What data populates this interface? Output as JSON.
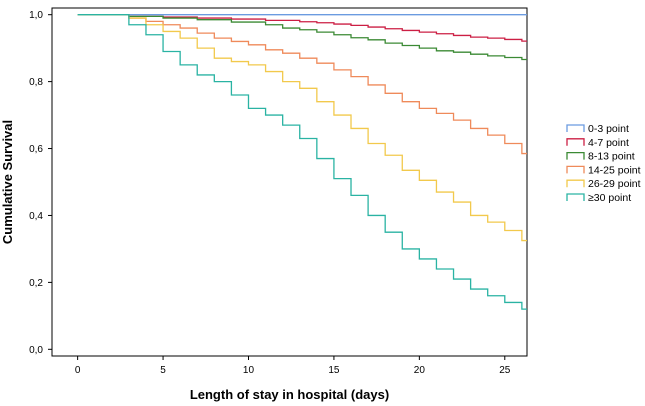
{
  "chart_data": {
    "type": "line",
    "step": true,
    "xlabel": "Length of stay in hospital (days)",
    "ylabel": "Cumulative Survival",
    "xlim": [
      -1.5,
      26.3
    ],
    "ylim": [
      -0.02,
      1.02
    ],
    "x_ticks": [
      0,
      5,
      10,
      15,
      20,
      25
    ],
    "x_tick_labels": [
      "0",
      "5",
      "10",
      "15",
      "20",
      "25"
    ],
    "y_ticks": [
      0,
      0.2,
      0.4,
      0.6,
      0.8,
      1.0
    ],
    "y_tick_labels": [
      "0,0",
      "0,2",
      "0,4",
      "0,6",
      "0,8",
      "1,0"
    ],
    "grid": false,
    "legend_position": "right",
    "series": [
      {
        "name": "0-3 point",
        "color": "#6b9be0",
        "x": [
          0,
          26.3
        ],
        "y": [
          1.0,
          1.0
        ]
      },
      {
        "name": "4-7 point",
        "color": "#cc1f44",
        "x": [
          0,
          3,
          5,
          7,
          9,
          11,
          13,
          14,
          15,
          16,
          17,
          18,
          19,
          20,
          21,
          22,
          23,
          24,
          25,
          26,
          26.3
        ],
        "y": [
          1.0,
          0.995,
          0.993,
          0.99,
          0.987,
          0.983,
          0.979,
          0.976,
          0.972,
          0.968,
          0.963,
          0.958,
          0.953,
          0.948,
          0.943,
          0.938,
          0.933,
          0.93,
          0.926,
          0.921,
          0.921
        ]
      },
      {
        "name": "8-13 point",
        "color": "#3b8a34",
        "x": [
          0,
          3,
          5,
          7,
          9,
          11,
          12,
          13,
          14,
          15,
          16,
          17,
          18,
          19,
          20,
          21,
          22,
          23,
          24,
          25,
          26,
          26.3
        ],
        "y": [
          1.0,
          0.995,
          0.99,
          0.985,
          0.978,
          0.97,
          0.96,
          0.955,
          0.948,
          0.94,
          0.931,
          0.925,
          0.915,
          0.908,
          0.9,
          0.892,
          0.888,
          0.882,
          0.877,
          0.872,
          0.866,
          0.866
        ]
      },
      {
        "name": "14-25 point",
        "color": "#ef8a5a",
        "x": [
          0,
          3,
          4,
          5,
          6,
          7,
          8,
          9,
          10,
          11,
          12,
          13,
          14,
          15,
          16,
          17,
          18,
          19,
          20,
          21,
          22,
          23,
          24,
          25,
          26,
          26.3
        ],
        "y": [
          1.0,
          0.99,
          0.98,
          0.97,
          0.96,
          0.945,
          0.93,
          0.92,
          0.91,
          0.895,
          0.885,
          0.87,
          0.855,
          0.835,
          0.815,
          0.79,
          0.765,
          0.74,
          0.72,
          0.705,
          0.685,
          0.66,
          0.64,
          0.615,
          0.585,
          0.585
        ]
      },
      {
        "name": "26-29 point",
        "color": "#f2c94c",
        "x": [
          0,
          3,
          4,
          5,
          6,
          7,
          8,
          9,
          10,
          11,
          12,
          13,
          14,
          15,
          16,
          17,
          18,
          19,
          20,
          21,
          22,
          23,
          24,
          25,
          26,
          26.3
        ],
        "y": [
          1.0,
          0.99,
          0.97,
          0.95,
          0.93,
          0.9,
          0.87,
          0.86,
          0.85,
          0.83,
          0.8,
          0.78,
          0.74,
          0.7,
          0.66,
          0.615,
          0.58,
          0.535,
          0.505,
          0.47,
          0.44,
          0.4,
          0.38,
          0.355,
          0.325,
          0.325
        ]
      },
      {
        "name": "≥30 point",
        "color": "#2ab3a3",
        "x": [
          0,
          3,
          4,
          5,
          6,
          7,
          8,
          9,
          10,
          11,
          12,
          13,
          14,
          15,
          16,
          17,
          18,
          19,
          20,
          21,
          22,
          23,
          24,
          25,
          26,
          26.3
        ],
        "y": [
          1.0,
          0.97,
          0.94,
          0.89,
          0.85,
          0.82,
          0.8,
          0.76,
          0.72,
          0.7,
          0.67,
          0.63,
          0.57,
          0.51,
          0.46,
          0.4,
          0.35,
          0.3,
          0.27,
          0.24,
          0.21,
          0.18,
          0.16,
          0.14,
          0.12,
          0.12
        ]
      }
    ]
  }
}
